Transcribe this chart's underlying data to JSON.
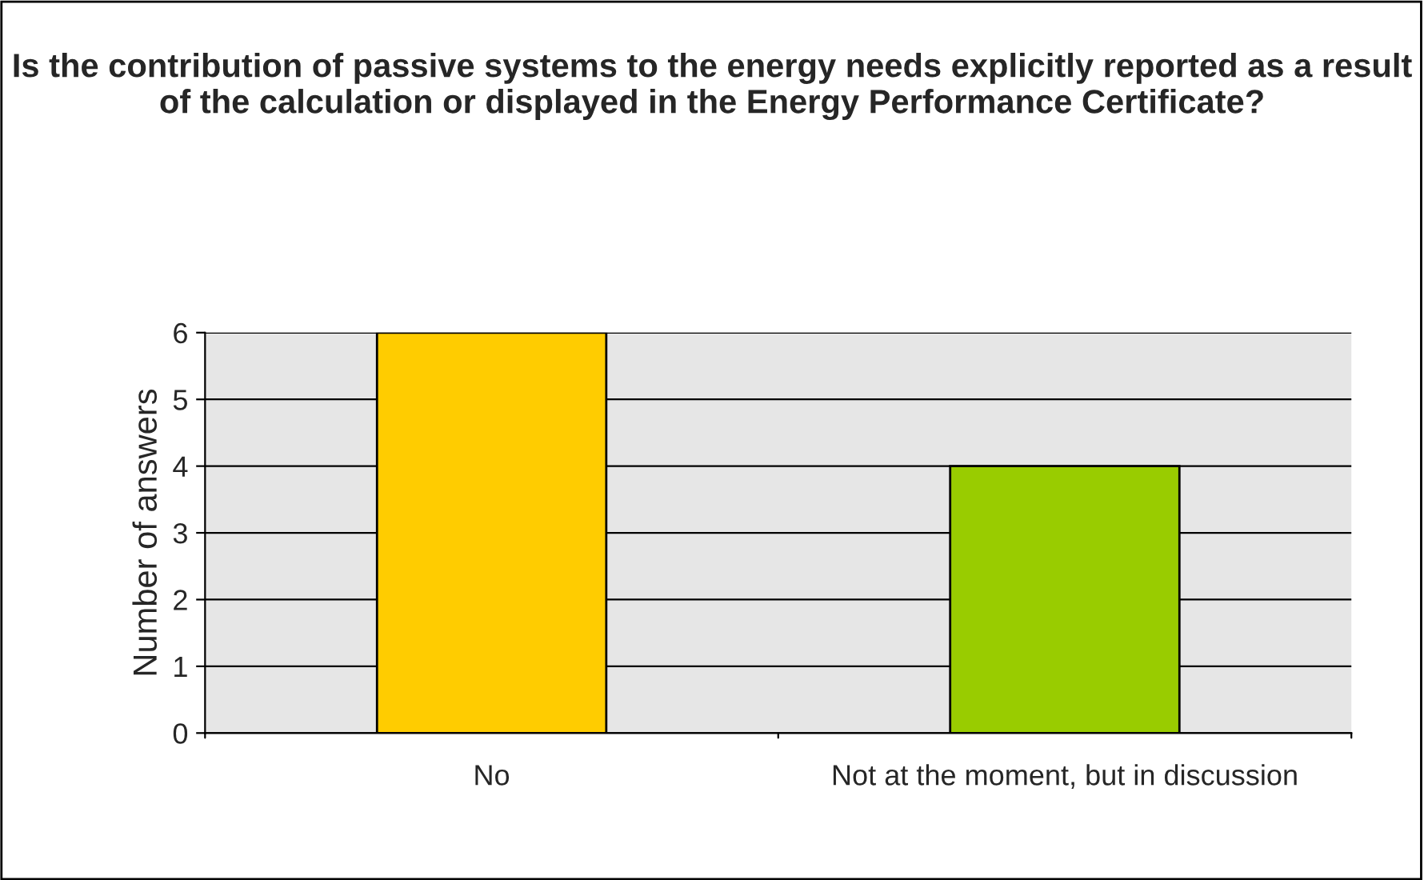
{
  "chart_data": {
    "type": "bar",
    "title": "Is the contribution of passive systems to the energy needs explicitly reported as a result of the calculation or displayed in the Energy Performance Certificate?",
    "ylabel": "Number of answers",
    "categories": [
      "No",
      "Not at the moment, but in discussion"
    ],
    "values": [
      6,
      4
    ],
    "colors": [
      "#ffcc00",
      "#99cc00"
    ],
    "ylim": [
      0,
      6
    ],
    "yticks": [
      0,
      1,
      2,
      3,
      4,
      5,
      6
    ],
    "grid": "y",
    "legend": false
  }
}
